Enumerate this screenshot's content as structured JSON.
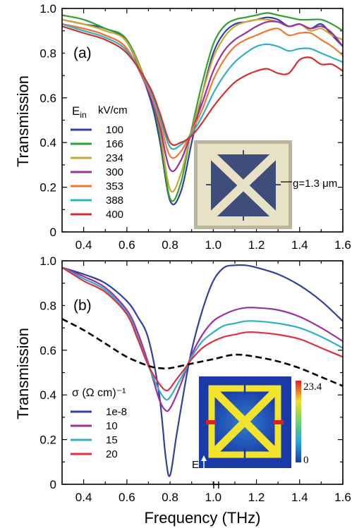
{
  "chart_data": [
    {
      "type": "line",
      "panel_label": "(a)",
      "xlabel": "",
      "ylabel": "Transmission",
      "xlim": [
        0.3,
        1.6
      ],
      "ylim": [
        0,
        1.0
      ],
      "xticks": [
        "0.4",
        "0.6",
        "0.8",
        "1.0",
        "1.2",
        "1.4",
        "1.6"
      ],
      "yticks": [
        "0",
        "0.2",
        "0.4",
        "0.6",
        "0.8",
        "1.0"
      ],
      "legend_title": "kV/cm",
      "legend_symbol": "E",
      "legend_symbol_sub": "in",
      "legend_position": "left",
      "inset_label": "g=1.3 μm",
      "series": [
        {
          "name": "100",
          "color": "#3040a0",
          "x": [
            0.3,
            0.4,
            0.5,
            0.6,
            0.7,
            0.75,
            0.8,
            0.85,
            0.9,
            0.95,
            1.0,
            1.05,
            1.1,
            1.15,
            1.2,
            1.25,
            1.3,
            1.35,
            1.4,
            1.45,
            1.5,
            1.55,
            1.6
          ],
          "y": [
            0.95,
            0.93,
            0.91,
            0.85,
            0.62,
            0.42,
            0.14,
            0.18,
            0.4,
            0.62,
            0.8,
            0.89,
            0.93,
            0.94,
            0.95,
            0.96,
            0.95,
            0.92,
            0.93,
            0.91,
            0.93,
            0.88,
            0.83
          ]
        },
        {
          "name": "166",
          "color": "#30a030",
          "x": [
            0.3,
            0.4,
            0.5,
            0.6,
            0.7,
            0.75,
            0.8,
            0.85,
            0.9,
            0.95,
            1.0,
            1.05,
            1.1,
            1.15,
            1.2,
            1.25,
            1.3,
            1.35,
            1.4,
            1.45,
            1.5,
            1.55,
            1.6
          ],
          "y": [
            0.97,
            0.95,
            0.91,
            0.86,
            0.64,
            0.45,
            0.15,
            0.22,
            0.46,
            0.67,
            0.84,
            0.92,
            0.95,
            0.96,
            0.97,
            0.98,
            0.97,
            0.96,
            0.95,
            0.95,
            0.95,
            0.93,
            0.9
          ]
        },
        {
          "name": "234",
          "color": "#c8a830",
          "x": [
            0.3,
            0.4,
            0.5,
            0.6,
            0.7,
            0.75,
            0.8,
            0.85,
            0.9,
            0.95,
            1.0,
            1.05,
            1.1,
            1.15,
            1.2,
            1.25,
            1.3,
            1.35,
            1.4,
            1.45,
            1.5,
            1.55,
            1.6
          ],
          "y": [
            0.95,
            0.93,
            0.9,
            0.85,
            0.64,
            0.47,
            0.19,
            0.26,
            0.45,
            0.62,
            0.78,
            0.87,
            0.92,
            0.94,
            0.95,
            0.95,
            0.94,
            0.92,
            0.93,
            0.9,
            0.91,
            0.88,
            0.86
          ]
        },
        {
          "name": "300",
          "color": "#9a30a0",
          "x": [
            0.3,
            0.4,
            0.5,
            0.6,
            0.7,
            0.75,
            0.8,
            0.85,
            0.9,
            0.95,
            1.0,
            1.05,
            1.1,
            1.15,
            1.2,
            1.25,
            1.3,
            1.35,
            1.4,
            1.45,
            1.5,
            1.55,
            1.6
          ],
          "y": [
            0.93,
            0.91,
            0.88,
            0.82,
            0.63,
            0.48,
            0.28,
            0.32,
            0.45,
            0.58,
            0.72,
            0.81,
            0.86,
            0.89,
            0.92,
            0.94,
            0.94,
            0.92,
            0.93,
            0.91,
            0.92,
            0.89,
            0.83
          ]
        },
        {
          "name": "353",
          "color": "#f07830",
          "x": [
            0.3,
            0.4,
            0.5,
            0.6,
            0.7,
            0.75,
            0.8,
            0.85,
            0.9,
            0.95,
            1.0,
            1.05,
            1.1,
            1.15,
            1.2,
            1.25,
            1.3,
            1.35,
            1.4,
            1.45,
            1.5,
            1.55,
            1.6
          ],
          "y": [
            0.93,
            0.91,
            0.88,
            0.82,
            0.64,
            0.5,
            0.34,
            0.36,
            0.45,
            0.55,
            0.68,
            0.77,
            0.83,
            0.86,
            0.88,
            0.9,
            0.91,
            0.88,
            0.89,
            0.89,
            0.86,
            0.83,
            0.79
          ]
        },
        {
          "name": "388",
          "color": "#30b0c0",
          "x": [
            0.3,
            0.4,
            0.5,
            0.6,
            0.7,
            0.75,
            0.8,
            0.85,
            0.9,
            0.95,
            1.0,
            1.05,
            1.1,
            1.15,
            1.2,
            1.25,
            1.3,
            1.35,
            1.4,
            1.45,
            1.5,
            1.55,
            1.6
          ],
          "y": [
            0.93,
            0.9,
            0.87,
            0.81,
            0.65,
            0.52,
            0.38,
            0.39,
            0.44,
            0.52,
            0.62,
            0.7,
            0.76,
            0.8,
            0.83,
            0.84,
            0.83,
            0.81,
            0.82,
            0.82,
            0.8,
            0.78,
            0.76
          ]
        },
        {
          "name": "400",
          "color": "#d03030",
          "x": [
            0.3,
            0.4,
            0.5,
            0.6,
            0.7,
            0.75,
            0.8,
            0.85,
            0.9,
            0.95,
            1.0,
            1.05,
            1.1,
            1.15,
            1.2,
            1.25,
            1.3,
            1.35,
            1.4,
            1.45,
            1.5,
            1.55,
            1.6
          ],
          "y": [
            0.92,
            0.89,
            0.86,
            0.8,
            0.66,
            0.54,
            0.4,
            0.4,
            0.43,
            0.49,
            0.56,
            0.62,
            0.67,
            0.7,
            0.72,
            0.73,
            0.71,
            0.71,
            0.77,
            0.78,
            0.75,
            0.75,
            0.72
          ]
        }
      ]
    },
    {
      "type": "line",
      "panel_label": "(b)",
      "xlabel": "Frequency (THz)",
      "ylabel": "Transmission",
      "xlim": [
        0.3,
        1.6
      ],
      "ylim": [
        0,
        1.0
      ],
      "xticks": [
        "0.4",
        "0.6",
        "0.8",
        "1.0",
        "1.2",
        "1.4",
        "1.6"
      ],
      "yticks": [
        "0",
        "0.2",
        "0.4",
        "0.6",
        "0.8",
        "1.0"
      ],
      "legend_title": "σ (Ω cm)⁻¹",
      "legend_position": "left",
      "colorbar": {
        "max_label": "23.4",
        "min_label": "0"
      },
      "inset_axes": {
        "e_label": "E",
        "h_label": "H"
      },
      "series": [
        {
          "name": "1e-8",
          "color": "#3040a0",
          "x": [
            0.3,
            0.4,
            0.5,
            0.6,
            0.65,
            0.7,
            0.75,
            0.78,
            0.8,
            0.83,
            0.87,
            0.9,
            0.95,
            1.0,
            1.05,
            1.1,
            1.15,
            1.2,
            1.3,
            1.4,
            1.5,
            1.6
          ],
          "y": [
            0.97,
            0.94,
            0.9,
            0.82,
            0.75,
            0.65,
            0.4,
            0.12,
            0.04,
            0.22,
            0.45,
            0.6,
            0.78,
            0.91,
            0.97,
            0.98,
            0.98,
            0.97,
            0.94,
            0.89,
            0.82,
            0.73
          ]
        },
        {
          "name": "10",
          "color": "#9a30a0",
          "x": [
            0.3,
            0.4,
            0.5,
            0.6,
            0.65,
            0.7,
            0.75,
            0.78,
            0.8,
            0.83,
            0.87,
            0.9,
            0.95,
            1.0,
            1.05,
            1.1,
            1.15,
            1.2,
            1.3,
            1.4,
            1.5,
            1.6
          ],
          "y": [
            0.97,
            0.93,
            0.88,
            0.78,
            0.68,
            0.54,
            0.38,
            0.33,
            0.34,
            0.4,
            0.5,
            0.58,
            0.67,
            0.73,
            0.76,
            0.78,
            0.79,
            0.79,
            0.78,
            0.75,
            0.7,
            0.64
          ]
        },
        {
          "name": "15",
          "color": "#30b0c0",
          "x": [
            0.3,
            0.4,
            0.5,
            0.6,
            0.65,
            0.7,
            0.75,
            0.78,
            0.8,
            0.83,
            0.87,
            0.9,
            0.95,
            1.0,
            1.05,
            1.1,
            1.15,
            1.2,
            1.3,
            1.4,
            1.5,
            1.6
          ],
          "y": [
            0.97,
            0.92,
            0.87,
            0.77,
            0.66,
            0.53,
            0.42,
            0.38,
            0.39,
            0.44,
            0.51,
            0.57,
            0.64,
            0.68,
            0.71,
            0.72,
            0.73,
            0.73,
            0.72,
            0.7,
            0.66,
            0.61
          ]
        },
        {
          "name": "20",
          "color": "#e03040",
          "x": [
            0.3,
            0.4,
            0.5,
            0.6,
            0.65,
            0.7,
            0.75,
            0.78,
            0.8,
            0.83,
            0.87,
            0.9,
            0.95,
            1.0,
            1.05,
            1.1,
            1.15,
            1.2,
            1.3,
            1.4,
            1.5,
            1.6
          ],
          "y": [
            0.97,
            0.91,
            0.86,
            0.76,
            0.65,
            0.53,
            0.45,
            0.42,
            0.43,
            0.47,
            0.52,
            0.56,
            0.61,
            0.64,
            0.66,
            0.67,
            0.68,
            0.68,
            0.67,
            0.65,
            0.61,
            0.57
          ]
        },
        {
          "name": "",
          "color": "#000000",
          "dashed": true,
          "x": [
            0.3,
            0.4,
            0.5,
            0.6,
            0.7,
            0.75,
            0.8,
            0.9,
            1.0,
            1.1,
            1.2,
            1.3,
            1.4,
            1.5,
            1.6
          ],
          "y": [
            0.74,
            0.69,
            0.63,
            0.57,
            0.53,
            0.52,
            0.52,
            0.54,
            0.56,
            0.58,
            0.57,
            0.55,
            0.52,
            0.48,
            0.44
          ]
        }
      ]
    }
  ]
}
